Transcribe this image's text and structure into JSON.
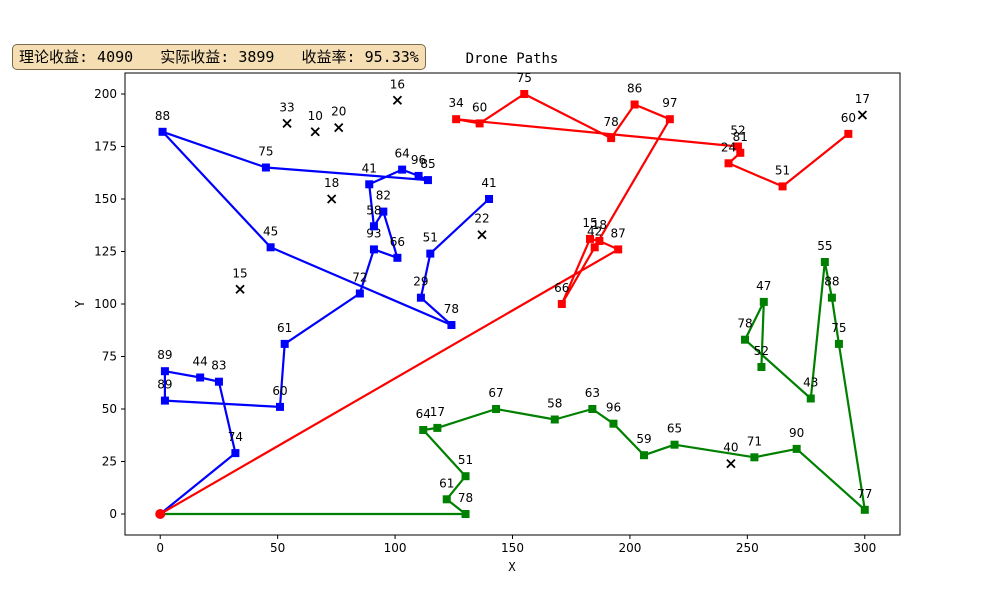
{
  "info_box": "理论收益: 4090   实际收益: 3899   收益率: 95.33%",
  "chart_data": {
    "type": "line",
    "title": "Drone Paths",
    "xlabel": "X",
    "ylabel": "Y",
    "xlim": [
      -15,
      315
    ],
    "ylim": [
      -10,
      210
    ],
    "xticks": [
      0,
      50,
      100,
      150,
      200,
      250,
      300
    ],
    "yticks": [
      0,
      25,
      50,
      75,
      100,
      125,
      150,
      175,
      200
    ],
    "grid": false,
    "depot": {
      "x": 0,
      "y": 0,
      "color": "#ff0000"
    },
    "series": [
      {
        "color": "#0000ff",
        "path": [
          {
            "x": 0,
            "y": 0,
            "label": ""
          },
          {
            "x": 32,
            "y": 29,
            "label": "74"
          },
          {
            "x": 25,
            "y": 63,
            "label": "83"
          },
          {
            "x": 17,
            "y": 65,
            "label": "44"
          },
          {
            "x": 2,
            "y": 68,
            "label": "89"
          },
          {
            "x": 2,
            "y": 54,
            "label": "89"
          },
          {
            "x": 51,
            "y": 51,
            "label": "60"
          },
          {
            "x": 53,
            "y": 81,
            "label": "61"
          },
          {
            "x": 85,
            "y": 105,
            "label": "72"
          },
          {
            "x": 91,
            "y": 126,
            "label": "93"
          },
          {
            "x": 101,
            "y": 122,
            "label": "66"
          },
          {
            "x": 95,
            "y": 144,
            "label": "82"
          },
          {
            "x": 91,
            "y": 137,
            "label": "58"
          },
          {
            "x": 89,
            "y": 157,
            "label": "41"
          },
          {
            "x": 103,
            "y": 164,
            "label": "64"
          },
          {
            "x": 110,
            "y": 161,
            "label": "96"
          },
          {
            "x": 114,
            "y": 159,
            "label": "85"
          },
          {
            "x": 45,
            "y": 165,
            "label": "75"
          },
          {
            "x": 1,
            "y": 182,
            "label": "88"
          },
          {
            "x": 47,
            "y": 127,
            "label": "45"
          },
          {
            "x": 124,
            "y": 90,
            "label": "78"
          },
          {
            "x": 111,
            "y": 103,
            "label": "29"
          },
          {
            "x": 115,
            "y": 124,
            "label": "51"
          },
          {
            "x": 140,
            "y": 150,
            "label": "41"
          }
        ]
      },
      {
        "color": "#ff0000",
        "path": [
          {
            "x": 0,
            "y": 0,
            "label": ""
          },
          {
            "x": 195,
            "y": 126,
            "label": "87"
          },
          {
            "x": 187,
            "y": 130,
            "label": "18"
          },
          {
            "x": 183,
            "y": 131,
            "label": "15"
          },
          {
            "x": 171,
            "y": 100,
            "label": "66"
          },
          {
            "x": 185,
            "y": 127,
            "label": "42"
          },
          {
            "x": 217,
            "y": 188,
            "label": "97"
          },
          {
            "x": 202,
            "y": 195,
            "label": "86"
          },
          {
            "x": 192,
            "y": 179,
            "label": "78"
          },
          {
            "x": 155,
            "y": 200,
            "label": "75"
          },
          {
            "x": 136,
            "y": 186,
            "label": "60"
          },
          {
            "x": 126,
            "y": 188,
            "label": "34"
          },
          {
            "x": 246,
            "y": 175,
            "label": "52"
          },
          {
            "x": 247,
            "y": 172,
            "label": "81"
          },
          {
            "x": 242,
            "y": 167,
            "label": "24"
          },
          {
            "x": 265,
            "y": 156,
            "label": "51"
          },
          {
            "x": 293,
            "y": 181,
            "label": "60"
          }
        ]
      },
      {
        "color": "#008000",
        "path": [
          {
            "x": 0,
            "y": 0,
            "label": ""
          },
          {
            "x": 130,
            "y": 0,
            "label": "78"
          },
          {
            "x": 122,
            "y": 7,
            "label": "61"
          },
          {
            "x": 130,
            "y": 18,
            "label": "51"
          },
          {
            "x": 112,
            "y": 40,
            "label": "64"
          },
          {
            "x": 118,
            "y": 41,
            "label": "17"
          },
          {
            "x": 143,
            "y": 50,
            "label": "67"
          },
          {
            "x": 168,
            "y": 45,
            "label": "58"
          },
          {
            "x": 184,
            "y": 50,
            "label": "63"
          },
          {
            "x": 193,
            "y": 43,
            "label": "96"
          },
          {
            "x": 206,
            "y": 28,
            "label": "59"
          },
          {
            "x": 219,
            "y": 33,
            "label": "65"
          },
          {
            "x": 253,
            "y": 27,
            "label": "71"
          },
          {
            "x": 271,
            "y": 31,
            "label": "90"
          },
          {
            "x": 300,
            "y": 2,
            "label": "77"
          },
          {
            "x": 289,
            "y": 81,
            "label": "75"
          },
          {
            "x": 286,
            "y": 103,
            "label": "88"
          },
          {
            "x": 283,
            "y": 120,
            "label": "55"
          },
          {
            "x": 277,
            "y": 55,
            "label": "43"
          },
          {
            "x": 249,
            "y": 83,
            "label": "78"
          },
          {
            "x": 257,
            "y": 101,
            "label": "47"
          },
          {
            "x": 256,
            "y": 70,
            "label": "52"
          }
        ]
      }
    ],
    "unvisited": [
      {
        "x": 34,
        "y": 107,
        "label": "15"
      },
      {
        "x": 54,
        "y": 186,
        "label": "33"
      },
      {
        "x": 66,
        "y": 182,
        "label": "10"
      },
      {
        "x": 76,
        "y": 184,
        "label": "20"
      },
      {
        "x": 73,
        "y": 150,
        "label": "18"
      },
      {
        "x": 101,
        "y": 197,
        "label": "16"
      },
      {
        "x": 137,
        "y": 133,
        "label": "22"
      },
      {
        "x": 243,
        "y": 24,
        "label": "40"
      },
      {
        "x": 299,
        "y": 190,
        "label": "17"
      }
    ]
  }
}
